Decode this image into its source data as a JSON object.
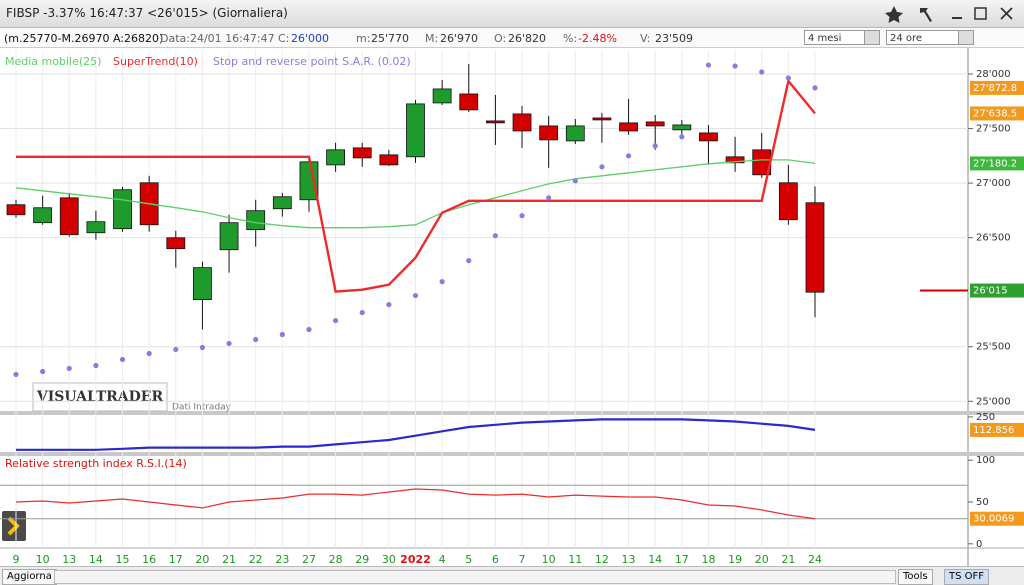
{
  "header": {
    "title": "FIBSP -3.37% 16:47:37  <26'015>  (Giornaliera)"
  },
  "info_bar": {
    "range": "(m.25770-M.26970 A:26820)",
    "date": "Data:24/01 16:47:47",
    "fields": [
      {
        "label": "C:",
        "value": "26'000"
      },
      {
        "label": "m:",
        "value": "25'770"
      },
      {
        "label": "M:",
        "value": "26'970"
      },
      {
        "label": "O:",
        "value": "26'820"
      },
      {
        "label": "%:",
        "value": "-2.48%"
      },
      {
        "label": "V:",
        "value": "23'509"
      }
    ],
    "period": "4 mesi",
    "interval": "24 ore"
  },
  "watermark": {
    "brand": "VISUALTRADER",
    "note": "Dati Intraday"
  },
  "footer": {
    "refresh": "Aggiorna",
    "tools": "Tools",
    "ts": "TS OFF"
  },
  "chart_data": [
    {
      "type": "candlestick",
      "categories": [
        "9",
        "10",
        "13",
        "14",
        "15",
        "16",
        "17",
        "20",
        "21",
        "22",
        "23",
        "27",
        "28",
        "29",
        "30",
        "2022",
        "4",
        "5",
        "6",
        "7",
        "10",
        "11",
        "12",
        "13",
        "14",
        "17",
        "18",
        "19",
        "20",
        "21",
        "24"
      ],
      "open": [
        26802,
        26637,
        26865,
        26545,
        26582,
        27003,
        26499,
        25932,
        26389,
        26573,
        26765,
        26847,
        27167,
        27323,
        27259,
        27241,
        27735,
        27817,
        27570,
        27634,
        27524,
        27387,
        27597,
        27552,
        27561,
        27488,
        27460,
        27241,
        27305,
        27003,
        26820
      ],
      "high": [
        26847,
        26884,
        26911,
        26747,
        26966,
        27067,
        26563,
        26280,
        26710,
        26847,
        26911,
        27231,
        27369,
        27369,
        27305,
        27762,
        27945,
        28091,
        27808,
        27707,
        27616,
        27588,
        27643,
        27771,
        27625,
        27579,
        27533,
        27424,
        27460,
        27167,
        26970
      ],
      "low": [
        26683,
        26618,
        26509,
        26481,
        26554,
        26554,
        26225,
        25658,
        26179,
        26417,
        26692,
        26737,
        27103,
        27149,
        27158,
        27186,
        27716,
        27652,
        27350,
        27323,
        27140,
        27359,
        27369,
        27442,
        27305,
        27424,
        27167,
        27103,
        27048,
        26618,
        25770
      ],
      "close": [
        26710,
        26774,
        26527,
        26646,
        26939,
        26618,
        26399,
        26225,
        26637,
        26747,
        26875,
        27195,
        27305,
        27231,
        27167,
        27726,
        27863,
        27671,
        27552,
        27478,
        27396,
        27524,
        27579,
        27478,
        27524,
        27533,
        27387,
        27186,
        27076,
        26664,
        26000
      ],
      "up_color": "#1e9b2c",
      "down_color": "#d40000",
      "ylim": [
        24920,
        28220
      ],
      "yticks": [
        {
          "value": 25000,
          "label": "25'000"
        },
        {
          "value": 25500,
          "label": "25'500"
        },
        {
          "value": 26500,
          "label": "26'500"
        },
        {
          "value": 27000,
          "label": "27'000"
        },
        {
          "value": 27500,
          "label": "27'500"
        },
        {
          "value": 28000,
          "label": "28'000"
        }
      ],
      "grid": true,
      "overlays": [
        {
          "name": "Media mobile(25)",
          "color": "#5fcf6a",
          "style": "line",
          "badge_color": "#3db83d",
          "last_label": "27'180.2",
          "values": [
            26957,
            26929,
            26902,
            26875,
            26847,
            26810,
            26774,
            26737,
            26682,
            26637,
            26609,
            26591,
            26591,
            26591,
            26600,
            26618,
            26728,
            26801,
            26865,
            26929,
            26993,
            27039,
            27067,
            27094,
            27122,
            27149,
            27177,
            27195,
            27213,
            27213,
            27180.2
          ]
        },
        {
          "name": "SuperTrend(10)",
          "color": "#ee2a2a",
          "style": "line",
          "badge_color": "#f39a1e",
          "last_label": "27'638.5",
          "values": [
            27241,
            27241,
            27241,
            27241,
            27241,
            27241,
            27241,
            27241,
            27241,
            27241,
            27241,
            27241,
            26005,
            26023,
            26069,
            26316,
            26728,
            26838,
            26838,
            26838,
            26838,
            26838,
            26838,
            26838,
            26838,
            26838,
            26838,
            26838,
            26838,
            27936,
            27638.5
          ]
        },
        {
          "name": "Stop and reverse point S.A.R. (0.02)",
          "color": "#8080e0",
          "style": "dots",
          "badge_color": "#f39a1e",
          "last_label": "27'872.8",
          "values": [
            25246,
            25273,
            25301,
            25328,
            25383,
            25438,
            25475,
            25493,
            25530,
            25566,
            25612,
            25658,
            25740,
            25813,
            25886,
            25969,
            26097,
            26289,
            26518,
            26701,
            26865,
            27021,
            27149,
            27250,
            27341,
            27424,
            28082,
            28073,
            28018,
            27963,
            27872.8
          ]
        }
      ],
      "last_price": {
        "value": 26015,
        "label": "26'015",
        "color": "#2fa02f"
      }
    },
    {
      "type": "line",
      "color": "#2a2ad0",
      "badge_color": "#f39a1e",
      "values": [
        -97,
        -97,
        -97,
        -97,
        -86,
        -74,
        -74,
        -74,
        -74,
        -74,
        -63,
        -63,
        -40,
        -17,
        6,
        52,
        98,
        144,
        167,
        190,
        201,
        213,
        224,
        224,
        224,
        224,
        213,
        201,
        178,
        155,
        112.856
      ],
      "ylim": [
        -120,
        270
      ],
      "yticks": [
        250
      ],
      "grid": false
    },
    {
      "type": "line",
      "title": "Relative strength index R.S.I.(14)",
      "color": "#ee2a2a",
      "badge_color": "#f39a1e",
      "values": [
        50,
        51.2,
        48.8,
        51.2,
        53.6,
        50,
        46.4,
        42.9,
        50,
        52.4,
        54.8,
        59.5,
        59.5,
        58.3,
        61.9,
        65.5,
        64.3,
        59.5,
        58.3,
        59.5,
        56,
        58.3,
        57.1,
        56,
        56,
        52.4,
        46.4,
        45.2,
        40.5,
        34.5,
        30.0069
      ],
      "ylim": [
        -5,
        105
      ],
      "yticks": [
        0,
        50,
        100
      ],
      "levels": [
        30,
        70
      ],
      "grid": false
    }
  ]
}
